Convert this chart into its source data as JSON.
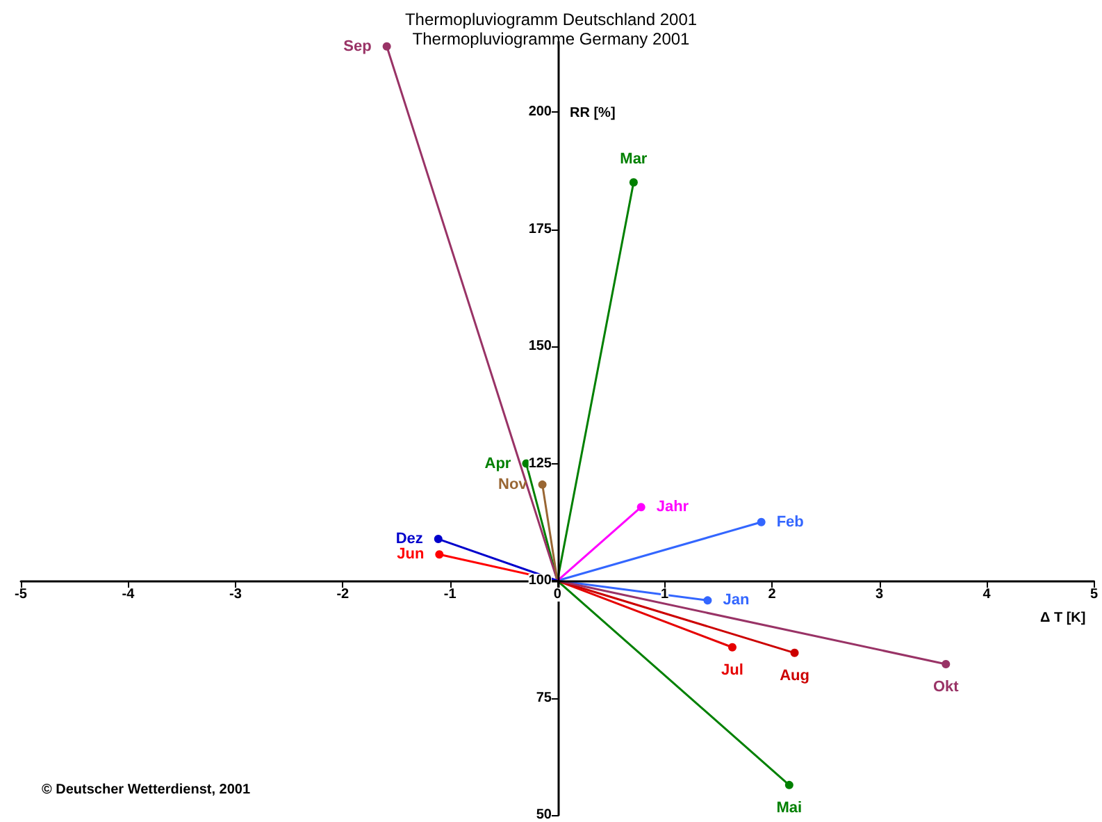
{
  "chart_data": {
    "type": "line",
    "title": "Thermopluviogramm Deutschland 2001\nThermopluviogramme Germany 2001",
    "xlabel": "Δ T [K]",
    "ylabel": "RR [%]",
    "annotations": [
      "© Deutscher Wetterdienst, 2001"
    ],
    "xlim": [
      -5,
      5
    ],
    "xticks": [
      -5,
      -4,
      -3,
      -2,
      -1,
      0,
      1,
      2,
      3,
      4,
      5
    ],
    "ylim": [
      50,
      215
    ],
    "yticks": [
      50,
      75,
      100,
      125,
      150,
      175,
      200
    ],
    "marker": "circle",
    "line_style": "solid",
    "grid": false,
    "legend": false,
    "series": [
      {
        "name": "Jan",
        "color": "#3366ff",
        "x": [
          0,
          1.4
        ],
        "values": [
          100,
          95.8
        ]
      },
      {
        "name": "Feb",
        "color": "#3366ff",
        "x": [
          0,
          1.9
        ],
        "values": [
          100,
          112.5
        ]
      },
      {
        "name": "Mar",
        "color": "#008000",
        "x": [
          0,
          0.71
        ],
        "values": [
          100,
          185
        ]
      },
      {
        "name": "Apr",
        "color": "#008000",
        "x": [
          0,
          -0.29
        ],
        "values": [
          100,
          125
        ]
      },
      {
        "name": "Mai",
        "color": "#008000",
        "x": [
          0,
          2.16
        ],
        "values": [
          100,
          56.4
        ]
      },
      {
        "name": "Jun",
        "color": "#ff0000",
        "x": [
          0,
          -1.1
        ],
        "values": [
          100,
          105.6
        ]
      },
      {
        "name": "Jul",
        "color": "#e60000",
        "x": [
          0,
          1.63
        ],
        "values": [
          100,
          85.8
        ]
      },
      {
        "name": "Aug",
        "color": "#cc0000",
        "x": [
          0,
          2.21
        ],
        "values": [
          100,
          84.6
        ]
      },
      {
        "name": "Sep",
        "color": "#993366",
        "x": [
          0,
          -1.59
        ],
        "values": [
          100,
          214
        ]
      },
      {
        "name": "Okt",
        "color": "#993366",
        "x": [
          0,
          3.62
        ],
        "values": [
          100,
          82.2
        ]
      },
      {
        "name": "Nov",
        "color": "#996633",
        "x": [
          0,
          -0.14
        ],
        "values": [
          100,
          120.5
        ]
      },
      {
        "name": "Dez",
        "color": "#0000cc",
        "x": [
          0,
          -1.11
        ],
        "values": [
          100,
          108.9
        ]
      },
      {
        "name": "Jahr",
        "color": "#ff00ff",
        "x": [
          0,
          0.78
        ],
        "values": [
          100,
          115.7
        ]
      }
    ]
  }
}
